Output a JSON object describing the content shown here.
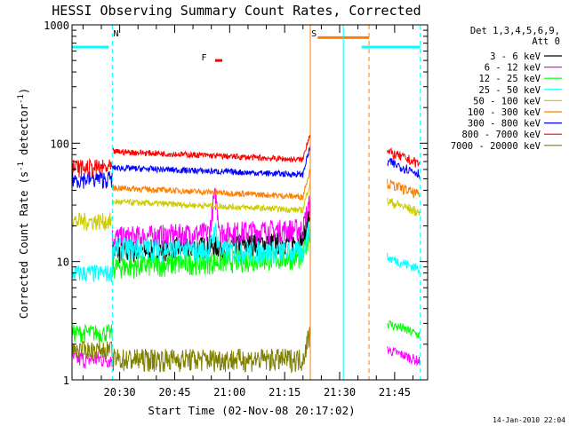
{
  "chart_data": {
    "type": "line",
    "title": "HESSI Observing Summary Count Rates, Corrected",
    "xlabel": "Start Time (02-Nov-08 20:17:02)",
    "ylabel": "Corrected Count Rate (s",
    "ylabel_sup1": "-1",
    "ylabel_mid": " detector",
    "ylabel_sup2": "-1",
    "ylabel_end": ")",
    "y_scale": "log",
    "ylim": [
      1,
      1000
    ],
    "y_ticks": [
      {
        "value": 1,
        "label": "1"
      },
      {
        "value": 10,
        "label": "10"
      },
      {
        "value": 100,
        "label": "100"
      },
      {
        "value": 1000,
        "label": "1000"
      }
    ],
    "x_range_minutes": [
      "20:17",
      "21:54"
    ],
    "x_ticks": [
      {
        "t": "20:30",
        "label": "20:30"
      },
      {
        "t": "20:45",
        "label": "20:45"
      },
      {
        "t": "21:00",
        "label": "21:00"
      },
      {
        "t": "21:15",
        "label": "21:15"
      },
      {
        "t": "21:30",
        "label": "21:30"
      },
      {
        "t": "21:45",
        "label": "21:45"
      }
    ],
    "legend": {
      "placement": "right",
      "header1": "Det 1,3,4,5,6,9,",
      "header2": "Att 0"
    },
    "series": [
      {
        "name": "3 - 6 keV",
        "color": "#000000",
        "pre": null,
        "day_start": 12,
        "day_end": 15,
        "post": null
      },
      {
        "name": "6 - 12 keV",
        "color": "#ff00ff",
        "pre": 1.5,
        "day_start": 16,
        "day_end": 19,
        "post": 1.5
      },
      {
        "name": "12 - 25 keV",
        "color": "#00ff00",
        "pre": 2.5,
        "day_start": 9,
        "day_end": 11,
        "post": 2.5
      },
      {
        "name": "25 - 50 keV",
        "color": "#00ffff",
        "pre": 8,
        "day_start": 13,
        "day_end": 12,
        "post": 9
      },
      {
        "name": "50 - 100 keV",
        "color": "#cccc00",
        "pre": 22,
        "day_start": 32,
        "day_end": 27,
        "post": 27
      },
      {
        "name": "100 - 300 keV",
        "color": "#ff8000",
        "pre": null,
        "day_start": 42,
        "day_end": 35,
        "post": 38
      },
      {
        "name": "300 - 800 keV",
        "color": "#0000ff",
        "pre": 50,
        "day_start": 62,
        "day_end": 54,
        "post": 58
      },
      {
        "name": "800 - 7000 keV",
        "color": "#ff0000",
        "pre": 62,
        "day_start": 85,
        "day_end": 72,
        "post": 70
      },
      {
        "name": "7000 - 20000 keV",
        "color": "#808000",
        "pre": 1.8,
        "day_start": 1.5,
        "day_end": 1.5,
        "post": null
      }
    ],
    "flare_peak": {
      "time": "20:56",
      "value_6_12": 35,
      "value_25_50": 18
    },
    "annotations": [
      {
        "label": "N",
        "color": "#00ffff",
        "text_time": "20:29"
      },
      {
        "label": "F",
        "color": "#ff0000",
        "text_time": "20:53"
      },
      {
        "label": "S",
        "color": "#ff8000",
        "text_time": "21:23"
      }
    ],
    "night_bars": [
      {
        "color": "#00ffff",
        "from": "20:17",
        "to": "20:27",
        "value": 650
      },
      {
        "color": "#00ffff",
        "from": "21:36",
        "to": "21:52",
        "value": 650
      },
      {
        "color": "#ff8000",
        "from": "21:24",
        "to": "21:38",
        "value": 780
      }
    ],
    "flare_bar": {
      "color": "#ff0000",
      "from": "20:56",
      "to": "20:58",
      "value": 500
    },
    "vlines": [
      {
        "time": "20:17",
        "color": "#00ffff",
        "style": "solid"
      },
      {
        "time": "20:28",
        "color": "#00ffff",
        "style": "dashed"
      },
      {
        "time": "21:22",
        "color": "#ff8000",
        "style": "solid"
      },
      {
        "time": "21:31",
        "color": "#00ffff",
        "style": "solid"
      },
      {
        "time": "21:38",
        "color": "#ff8000",
        "style": "dashed"
      },
      {
        "time": "21:52",
        "color": "#00ffff",
        "style": "dashed"
      }
    ],
    "footer_date": "14-Jan-2010 22:04"
  }
}
